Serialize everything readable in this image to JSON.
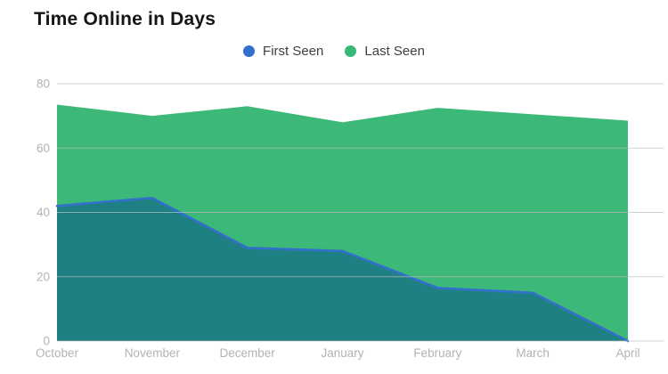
{
  "chart_data": {
    "type": "area",
    "title": "Time Online in Days",
    "categories": [
      "October",
      "November",
      "December",
      "January",
      "February",
      "March",
      "April"
    ],
    "series": [
      {
        "name": "First Seen",
        "values": [
          42,
          44.5,
          29,
          28,
          16.5,
          15,
          0
        ],
        "color": "#3270cc",
        "fill_color": "#1f8083"
      },
      {
        "name": "Last Seen",
        "values": [
          73.5,
          70,
          73,
          68,
          72.5,
          70.5,
          68.5
        ],
        "color": "#38b877",
        "fill_color": "#3cb878"
      }
    ],
    "ylim": [
      0,
      80
    ],
    "yticks": [
      0,
      20,
      40,
      60,
      80
    ],
    "grid": true,
    "legend_position": "top",
    "axis_label_color": "#b3b3b3",
    "grid_color": "#bdbdbd",
    "background_color": "#ffffff"
  }
}
